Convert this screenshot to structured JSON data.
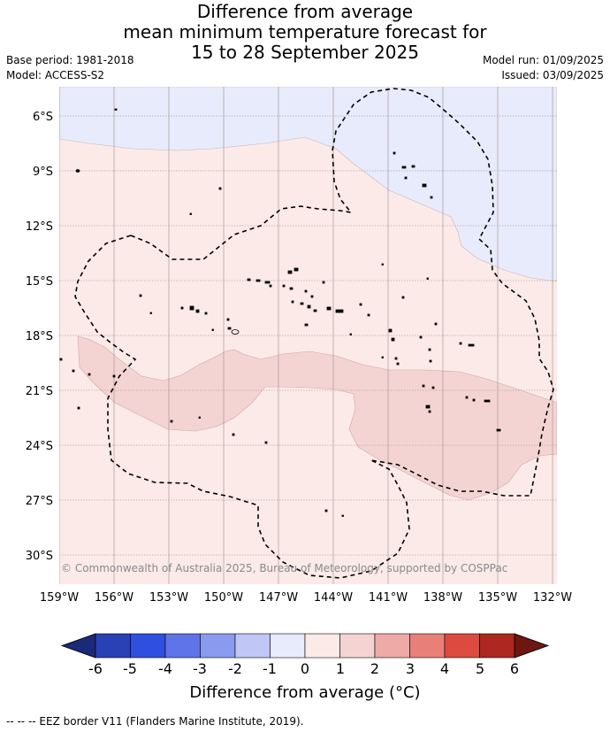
{
  "title": {
    "line1": "Difference from average",
    "line2": "mean minimum temperature forecast for",
    "line3": "15 to 28 September 2025"
  },
  "meta": {
    "base_period": "Base period: 1981-2018",
    "model": "Model: ACCESS-S2",
    "model_run": "Model run: 01/09/2025",
    "issued": "Issued: 03/09/2025"
  },
  "map": {
    "copyright": "© Commonwealth of Australia 2025, Bureau of Meteorology, supported by COSPPac",
    "lon_ticks": [
      "159°W",
      "156°W",
      "153°W",
      "150°W",
      "147°W",
      "144°W",
      "141°W",
      "138°W",
      "135°W",
      "132°W"
    ],
    "lat_ticks": [
      "6°S",
      "9°S",
      "12°S",
      "15°S",
      "18°S",
      "21°S",
      "24°S",
      "27°S",
      "30°S"
    ],
    "colors": {
      "anom_-1_0": "#e8ebfb",
      "anom_0_1": "#fbeae8",
      "anom_1_2": "#f4d4d3",
      "gridline": "#9a8a8a",
      "eez_border": "#000000"
    }
  },
  "colorbar": {
    "tick_labels": [
      "-6",
      "-5",
      "-4",
      "-3",
      "-2",
      "-1",
      "0",
      "1",
      "2",
      "3",
      "4",
      "5",
      "6"
    ],
    "colors": [
      "#1b2a78",
      "#2a40b5",
      "#2f4fe0",
      "#5f74e6",
      "#8a9aee",
      "#c0c7f6",
      "#e8ebfb",
      "#fbeae8",
      "#f4d4d3",
      "#eeaaa7",
      "#e88079",
      "#dc4a40",
      "#ad2820",
      "#6e1612"
    ],
    "label": "Difference from average (°C)"
  },
  "footnote": "--  --  -- EEZ border V11 (Flanders Marine Institute, 2019)."
}
